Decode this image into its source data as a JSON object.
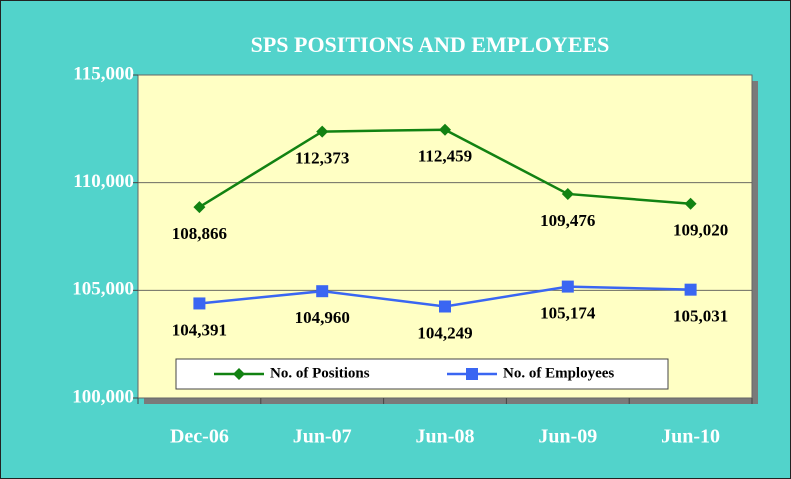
{
  "chart_data": {
    "type": "line",
    "title": "SPS POSITIONS AND EMPLOYEES",
    "categories": [
      "Dec-06",
      "Jun-07",
      "Jun-08",
      "Jun-09",
      "Jun-10"
    ],
    "series": [
      {
        "name": "No. of Positions",
        "color": "#128212",
        "marker": "diamond",
        "values": [
          108866,
          112373,
          112459,
          109476,
          109020
        ],
        "value_labels": [
          "108,866",
          "112,373",
          "112,459",
          "109,476",
          "109,020"
        ]
      },
      {
        "name": "No. of Employees",
        "color": "#3a66f2",
        "marker": "square",
        "values": [
          104391,
          104960,
          104249,
          105174,
          105031
        ],
        "value_labels": [
          "104,391",
          "104,960",
          "104,249",
          "105,174",
          "105,031"
        ]
      }
    ],
    "ylim": [
      100000,
      115000
    ],
    "yticks": [
      {
        "value": 100000,
        "label": "100,000"
      },
      {
        "value": 105000,
        "label": "105,000"
      },
      {
        "value": 110000,
        "label": "110,000"
      },
      {
        "value": 115000,
        "label": "115,000"
      }
    ],
    "grid": true,
    "legend": "bottom"
  }
}
